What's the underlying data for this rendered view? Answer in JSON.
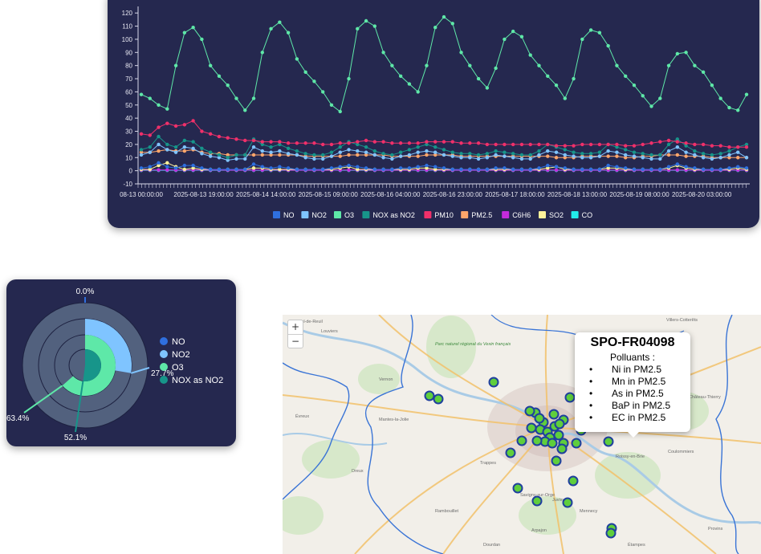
{
  "line_chart": {
    "yticks": [
      "120",
      "110",
      "100",
      "90",
      "80",
      "70",
      "60",
      "50",
      "40",
      "30",
      "20",
      "10",
      "0",
      "-10"
    ],
    "xticks": [
      "08-13 00:00:00",
      "2025-08-13 19:00:00",
      "2025-08-14 14:00:00",
      "2025-08-15 09:00:00",
      "2025-08-16 04:00:00",
      "2025-08-16 23:00:00",
      "2025-08-17 18:00:00",
      "2025-08-18 13:00:00",
      "2025-08-19 08:00:00",
      "2025-08-20 03:00:00"
    ],
    "legend": [
      {
        "label": "NO",
        "color": "#2f6fde"
      },
      {
        "label": "NO2",
        "color": "#7fc4ff"
      },
      {
        "label": "O3",
        "color": "#5ee8a8"
      },
      {
        "label": "NOX as NO2",
        "color": "#17958a"
      },
      {
        "label": "PM10",
        "color": "#f0306a"
      },
      {
        "label": "PM2.5",
        "color": "#ffa66b"
      },
      {
        "label": "C6H6",
        "color": "#c42bdc"
      },
      {
        "label": "SO2",
        "color": "#fff29a"
      },
      {
        "label": "CO",
        "color": "#22ecea"
      }
    ]
  },
  "chart_data": [
    {
      "type": "line",
      "xlabel": "",
      "ylabel": "",
      "ylim": [
        -10,
        125
      ],
      "x_start": "2025-08-13 00:00:00",
      "x_end": "2025-08-20 06:00:00",
      "series": [
        {
          "name": "O3",
          "color": "#5ee8a8",
          "values": [
            58,
            55,
            50,
            47,
            80,
            105,
            109,
            100,
            80,
            72,
            65,
            55,
            46,
            55,
            90,
            108,
            113,
            105,
            85,
            75,
            68,
            60,
            50,
            45,
            70,
            108,
            114,
            110,
            90,
            80,
            72,
            66,
            60,
            80,
            109,
            117,
            112,
            90,
            80,
            70,
            63,
            78,
            100,
            106,
            102,
            88,
            80,
            72,
            65,
            55,
            70,
            100,
            107,
            105,
            95,
            80,
            72,
            65,
            57,
            49,
            55,
            80,
            89,
            90,
            80,
            75,
            65,
            55,
            48,
            46,
            58
          ]
        },
        {
          "name": "PM10",
          "color": "#f0306a",
          "values": [
            28,
            27,
            33,
            36,
            34,
            35,
            38,
            30,
            28,
            26,
            25,
            24,
            23,
            23,
            22,
            22,
            22,
            21,
            21,
            21,
            21,
            20,
            20,
            21,
            21,
            22,
            23,
            22,
            22,
            21,
            21,
            21,
            21,
            22,
            22,
            22,
            22,
            21,
            21,
            21,
            20,
            20,
            20,
            20,
            20,
            20,
            20,
            20,
            19,
            19,
            19,
            20,
            20,
            20,
            20,
            20,
            19,
            19,
            20,
            21,
            22,
            23,
            22,
            21,
            20,
            20,
            19,
            19,
            18,
            18,
            18
          ]
        },
        {
          "name": "NOX as NO2",
          "color": "#17958a",
          "values": [
            16,
            18,
            26,
            20,
            18,
            23,
            22,
            17,
            14,
            12,
            10,
            12,
            12,
            24,
            20,
            18,
            20,
            17,
            15,
            13,
            12,
            12,
            14,
            18,
            22,
            20,
            18,
            15,
            13,
            12,
            14,
            16,
            18,
            20,
            18,
            16,
            14,
            13,
            13,
            12,
            13,
            15,
            14,
            13,
            12,
            12,
            15,
            20,
            18,
            16,
            14,
            13,
            13,
            14,
            20,
            18,
            16,
            14,
            13,
            12,
            12,
            20,
            24,
            19,
            15,
            13,
            12,
            13,
            15,
            18,
            20
          ]
        },
        {
          "name": "NO2",
          "color": "#7fc4ff",
          "values": [
            12,
            14,
            20,
            16,
            14,
            18,
            17,
            13,
            11,
            10,
            8,
            9,
            9,
            18,
            15,
            14,
            15,
            13,
            12,
            10,
            9,
            9,
            11,
            14,
            16,
            15,
            14,
            12,
            10,
            9,
            11,
            12,
            14,
            15,
            14,
            12,
            11,
            10,
            10,
            9,
            10,
            12,
            11,
            10,
            9,
            9,
            12,
            15,
            14,
            12,
            11,
            10,
            10,
            11,
            15,
            14,
            12,
            11,
            10,
            9,
            9,
            15,
            18,
            14,
            12,
            10,
            9,
            10,
            12,
            14,
            10
          ]
        },
        {
          "name": "PM2.5",
          "color": "#ffa66b",
          "values": [
            14,
            14,
            15,
            16,
            15,
            15,
            16,
            14,
            13,
            13,
            12,
            12,
            12,
            12,
            12,
            12,
            12,
            12,
            12,
            11,
            11,
            11,
            11,
            11,
            12,
            12,
            12,
            12,
            12,
            11,
            11,
            11,
            11,
            12,
            12,
            12,
            12,
            11,
            11,
            11,
            11,
            11,
            11,
            11,
            11,
            11,
            11,
            11,
            10,
            10,
            10,
            11,
            11,
            11,
            11,
            11,
            10,
            10,
            11,
            11,
            12,
            12,
            12,
            11,
            11,
            11,
            10,
            10,
            10,
            10,
            10
          ]
        },
        {
          "name": "NO",
          "color": "#2f6fde",
          "values": [
            2,
            3,
            6,
            3,
            2,
            4,
            4,
            2,
            1,
            1,
            1,
            1,
            1,
            5,
            3,
            2,
            3,
            2,
            1,
            1,
            1,
            1,
            2,
            3,
            4,
            3,
            2,
            1,
            1,
            1,
            2,
            2,
            3,
            4,
            3,
            2,
            1,
            1,
            1,
            1,
            1,
            2,
            2,
            1,
            1,
            1,
            2,
            4,
            3,
            2,
            1,
            1,
            1,
            1,
            4,
            3,
            2,
            1,
            1,
            1,
            1,
            3,
            5,
            3,
            2,
            1,
            1,
            1,
            2,
            3,
            2
          ]
        },
        {
          "name": "SO2",
          "color": "#fff29a",
          "values": [
            1,
            1,
            4,
            6,
            3,
            1,
            2,
            1,
            1,
            1,
            1,
            1,
            1,
            2,
            2,
            1,
            1,
            1,
            1,
            1,
            1,
            1,
            1,
            2,
            3,
            1,
            1,
            1,
            1,
            1,
            1,
            1,
            2,
            2,
            1,
            1,
            1,
            1,
            1,
            1,
            1,
            1,
            1,
            1,
            1,
            1,
            1,
            2,
            3,
            1,
            1,
            1,
            1,
            1,
            2,
            2,
            1,
            1,
            1,
            1,
            1,
            2,
            4,
            2,
            1,
            1,
            1,
            1,
            1,
            2,
            1
          ]
        },
        {
          "name": "C6H6",
          "color": "#c42bdc",
          "values": [
            0.5,
            0.5,
            0.6,
            0.6,
            0.5,
            0.5,
            0.6,
            0.5,
            0.5,
            0.5,
            0.4,
            0.4,
            0.4,
            0.5,
            0.5,
            0.5,
            0.5,
            0.4,
            0.4,
            0.4,
            0.4,
            0.4,
            0.4,
            0.5,
            0.5,
            0.5,
            0.5,
            0.4,
            0.4,
            0.4,
            0.4,
            0.4,
            0.5,
            0.5,
            0.5,
            0.4,
            0.4,
            0.4,
            0.4,
            0.4,
            0.4,
            0.4,
            0.4,
            0.4,
            0.4,
            0.4,
            0.4,
            0.5,
            0.5,
            0.4,
            0.4,
            0.4,
            0.4,
            0.4,
            0.5,
            0.5,
            0.4,
            0.4,
            0.4,
            0.4,
            0.4,
            0.5,
            0.6,
            0.5,
            0.4,
            0.4,
            0.4,
            0.4,
            0.4,
            0.5,
            0.4
          ]
        },
        {
          "name": "CO",
          "color": "#22ecea",
          "values": [
            0.3,
            0.3,
            0.3,
            0.3,
            0.3,
            0.3,
            0.3,
            0.3,
            0.3,
            0.3,
            0.3,
            0.3,
            0.3,
            0.3,
            0.3,
            0.3,
            0.3,
            0.3,
            0.3,
            0.3,
            0.3,
            0.3,
            0.3,
            0.3,
            0.3,
            0.3,
            0.3,
            0.3,
            0.3,
            0.3,
            0.3,
            0.3,
            0.3,
            0.3,
            0.3,
            0.3,
            0.3,
            0.3,
            0.3,
            0.3,
            0.3,
            0.3,
            0.3,
            0.3,
            0.3,
            0.3,
            0.3,
            0.3,
            0.3,
            0.3,
            0.3,
            0.3,
            0.3,
            0.3,
            0.3,
            0.3,
            0.3,
            0.3,
            0.3,
            0.3,
            0.3,
            0.3,
            0.3,
            0.3,
            0.3,
            0.3,
            0.3,
            0.3,
            0.3,
            0.3,
            0.3
          ]
        }
      ]
    },
    {
      "type": "pie",
      "title": "",
      "rings": [
        {
          "name": "NO",
          "color": "#2f6fde",
          "percent": 0.0,
          "label": "0.0%"
        },
        {
          "name": "NO2",
          "color": "#7fc4ff",
          "percent": 27.7,
          "label": "27.7%"
        },
        {
          "name": "O3",
          "color": "#5ee8a8",
          "percent": 63.4,
          "label": "63.4%"
        },
        {
          "name": "NOX as NO2",
          "color": "#17958a",
          "percent": 52.1,
          "label": "52.1%"
        }
      ]
    }
  ],
  "pie_legend": [
    {
      "label": "NO",
      "color": "#2f6fde"
    },
    {
      "label": "NO2",
      "color": "#7fc4ff"
    },
    {
      "label": "O3",
      "color": "#5ee8a8"
    },
    {
      "label": "NOX as NO2",
      "color": "#17958a"
    }
  ],
  "map": {
    "zoom_in": "+",
    "zoom_out": "−",
    "place_labels": [
      "Val-de-Reuil",
      "Louviers",
      "Parc naturel régional du Vexin français",
      "Vernon",
      "Évreux",
      "Mantes-la-Jolie",
      "Dreux",
      "Rambouillet",
      "Trappes",
      "Dourdan",
      "Étampes",
      "Villers-Cotterêts",
      "Château-Thierry",
      "Coulommiers",
      "Provins",
      "Roissy-en-Brie",
      "Savigny-sur-Orge",
      "Mennecy",
      "Arpajon",
      "Juvisy"
    ],
    "popup": {
      "title": "SPO-FR04098",
      "subtitle": "Polluants :",
      "items": [
        "Ni in PM2.5",
        "Mn in PM2.5",
        "As in PM2.5",
        "BaP in PM2.5",
        "EC in PM2.5"
      ]
    },
    "marker_color": "#5fce3c",
    "marker_border": "#1f3f9e"
  }
}
